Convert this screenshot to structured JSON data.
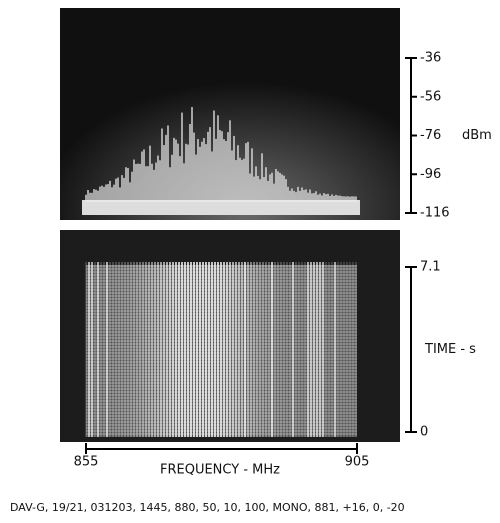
{
  "chart_data": [
    {
      "type": "spectrum",
      "y_label": "dBm",
      "ylim": [
        -116,
        -36
      ],
      "yticks": [
        -36,
        -56,
        -76,
        -96,
        -116
      ]
    },
    {
      "type": "waterfall",
      "y_label": "TIME - s",
      "ylim": [
        0,
        7.1
      ],
      "yticks": [
        7.1,
        0
      ],
      "x_label": "FREQUENCY - MHz",
      "xlim": [
        855,
        905
      ],
      "xticks": [
        855,
        905
      ]
    }
  ],
  "caption": "DAV-G, 19/21, 031203, 1445, 880, 50, 10, 100, MONO, 881, +16, 0, -20"
}
